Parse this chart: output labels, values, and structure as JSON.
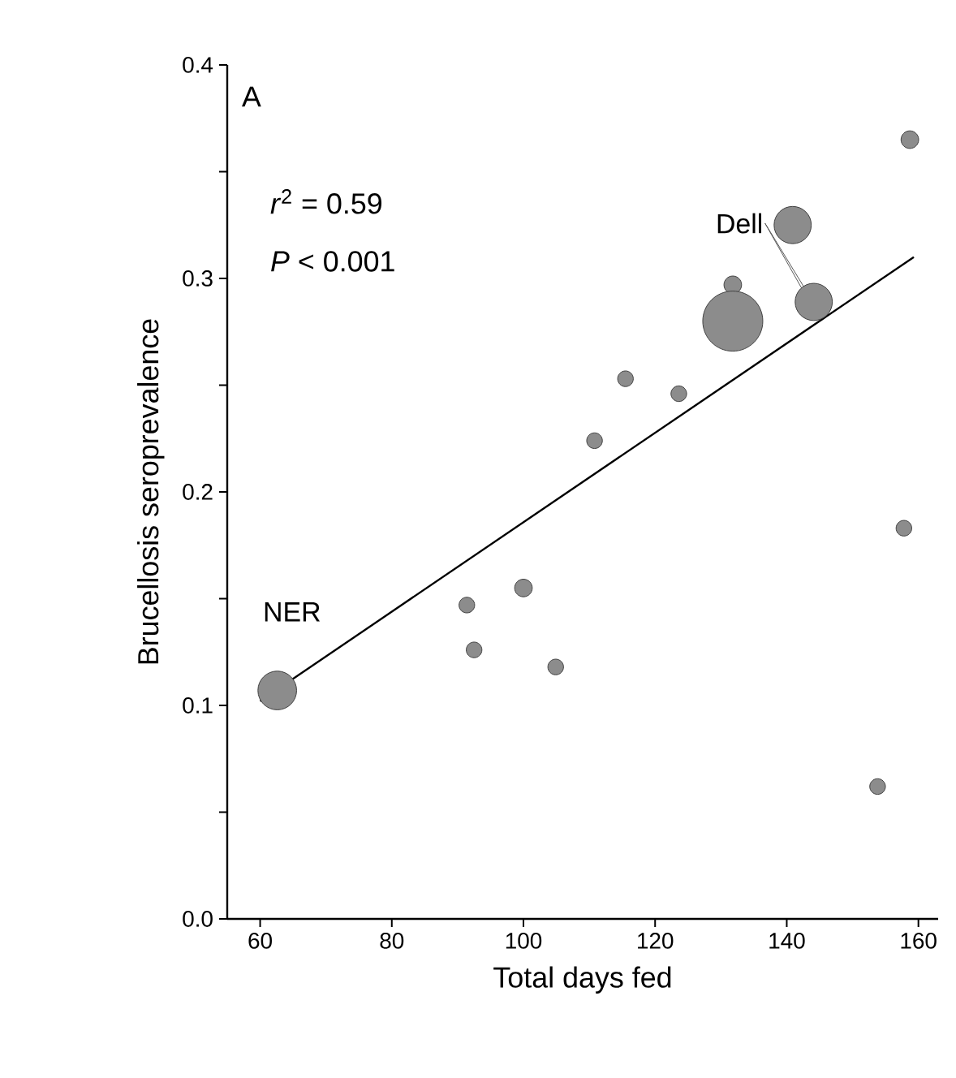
{
  "chart_data": {
    "type": "bubble",
    "xlabel": "Total days fed",
    "ylabel": "Brucellosis seroprevalence",
    "xlim": [
      55,
      163
    ],
    "xticks": [
      60,
      80,
      100,
      120,
      140,
      160
    ],
    "ylim": [
      0,
      0.4
    ],
    "yticks": [
      {
        "value": 0,
        "label": "0.0"
      },
      {
        "value": 0.05,
        "label": null
      },
      0.1,
      {
        "value": 0.15,
        "label": null
      },
      0.2,
      {
        "value": 0.25,
        "label": null
      },
      0.3,
      {
        "value": 0.35,
        "label": null
      },
      0.4
    ],
    "series": [
      {
        "type": "bubble",
        "color": "#8c8c8c",
        "x": [
          62.6,
          91.4,
          92.5,
          100.0,
          104.9,
          110.8,
          115.5,
          123.6,
          131.8,
          131.8,
          140.9,
          144.1,
          153.8,
          157.8,
          158.7
        ],
        "values": [
          0.107,
          0.147,
          0.126,
          0.155,
          0.118,
          0.224,
          0.253,
          0.246,
          0.297,
          0.28,
          0.325,
          0.289,
          0.062,
          0.183,
          0.365
        ],
        "sizes": [
          0.45,
          0.1,
          0.1,
          0.12,
          0.1,
          0.1,
          0.1,
          0.1,
          0.12,
          1,
          0.42,
          0.42,
          0.1,
          0.1,
          0.12
        ]
      },
      {
        "type": "line",
        "color": "#000000",
        "x": [
          60,
          159.3
        ],
        "values": [
          0.102,
          0.31
        ]
      }
    ],
    "annotations": [
      "A",
      "*r*$^{2}$ = 0.59",
      "*P* < 0.001",
      {
        "text": "Dell",
        "x": 144.1,
        "y": 0.289
      },
      {
        "text": "NER",
        "x": 62.6,
        "y": 0.107
      }
    ]
  }
}
